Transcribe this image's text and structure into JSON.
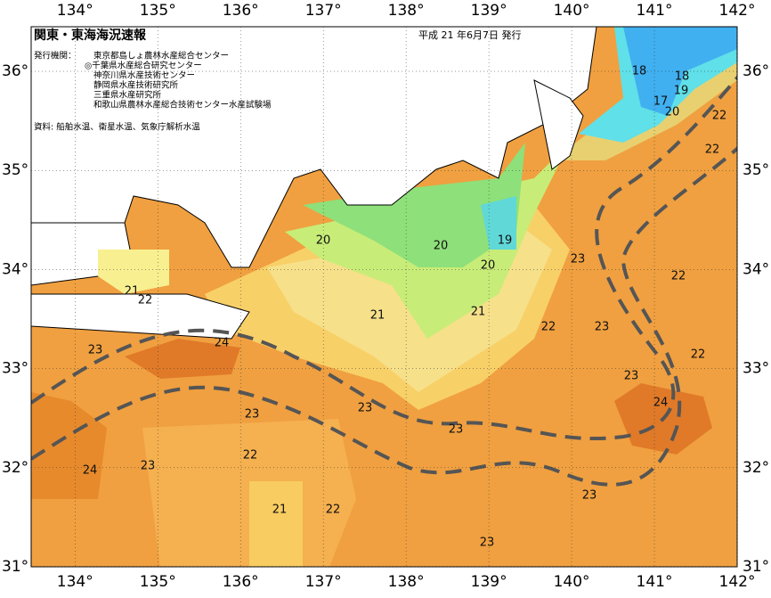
{
  "header": {
    "title": "関東・東海海況速報",
    "date": "平成 21 年6月7日 発行"
  },
  "issuers": {
    "label": "発行機関：",
    "names": [
      "東京都島しょ農林水産総合センター",
      "◎千葉県水産総合研究センター",
      "神奈川県水産技術センター",
      "静岡県水産技術研究所",
      "三重県水産研究所",
      "和歌山県農林水産総合技術センター水産試験場"
    ]
  },
  "source": "資料: 船舶水温、衛星水温、気象庁解析水温",
  "map": {
    "lonlim": [
      133.47,
      142
    ],
    "latlim": [
      31,
      36.45
    ],
    "lonticks": [
      {
        "value": 134,
        "label": "134°"
      },
      {
        "value": 135,
        "label": "135°"
      },
      {
        "value": 136,
        "label": "136°"
      },
      {
        "value": 137,
        "label": "137°"
      },
      {
        "value": 138,
        "label": "138°"
      },
      {
        "value": 139,
        "label": "139°"
      },
      {
        "value": 140,
        "label": "140°"
      },
      {
        "value": 141,
        "label": "141°"
      },
      {
        "value": 142,
        "label": "142°"
      }
    ],
    "latticks": [
      {
        "value": 36,
        "label": "36°"
      },
      {
        "value": 35,
        "label": "35°"
      },
      {
        "value": 34,
        "label": "34°"
      },
      {
        "value": 33,
        "label": "33°"
      },
      {
        "value": 32,
        "label": "32°"
      },
      {
        "value": 31,
        "label": "31°"
      }
    ],
    "contour_labels": [
      18,
      18,
      19,
      17,
      20,
      22,
      22,
      20,
      20,
      19,
      20,
      23,
      22,
      21,
      22,
      21,
      21,
      22,
      23,
      22,
      23,
      24,
      23,
      24,
      23,
      23,
      23,
      22,
      23,
      24,
      23,
      21,
      22,
      23
    ]
  }
}
